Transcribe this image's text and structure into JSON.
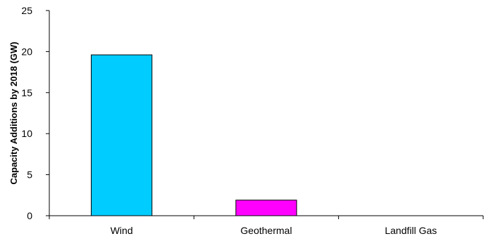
{
  "chart_data": {
    "type": "bar",
    "categories": [
      "Wind",
      "Geothermal",
      "Landfill Gas"
    ],
    "values": [
      19.6,
      1.9,
      0
    ],
    "colors": [
      "#00ccff",
      "#ff00ff",
      "#999999"
    ],
    "title": "",
    "xlabel": "",
    "ylabel": "Capacity Additions by 2018 (GW)",
    "ylim": [
      0,
      25
    ],
    "yticks": [
      0,
      5,
      10,
      15,
      20,
      25
    ],
    "grid": false,
    "legend": "none"
  }
}
